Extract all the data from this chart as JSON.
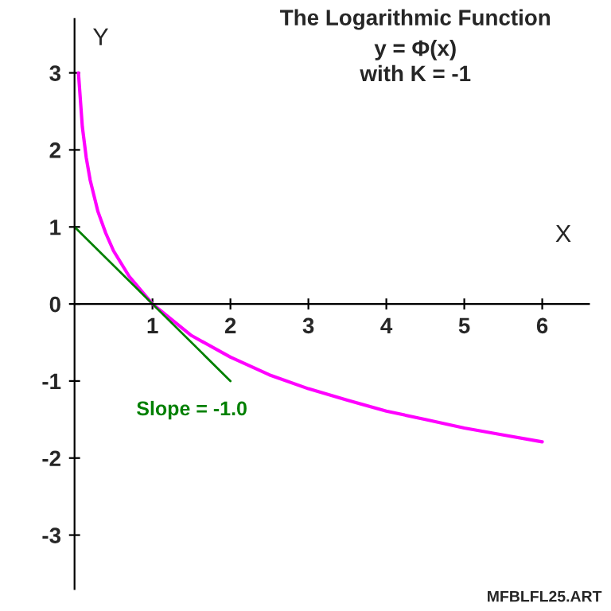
{
  "chart_data": {
    "type": "line",
    "title": "The Logarithmic Function",
    "subtitle": "y = Φ(x)\nwith K = -1",
    "xlabel": "X",
    "ylabel": "Y",
    "xlim": [
      0,
      6.6
    ],
    "ylim": [
      -3.7,
      3.7
    ],
    "xticks": [
      1,
      2,
      3,
      4,
      5,
      6
    ],
    "yticks": [
      {
        "value": -3,
        "label": "-3"
      },
      {
        "value": -2,
        "label": "-2"
      },
      {
        "value": -1,
        "label": "-1"
      },
      {
        "value": 0,
        "label": "0"
      },
      1,
      2,
      3
    ],
    "series": [
      {
        "color": "#ff00ff",
        "x": [
          0.05,
          0.1,
          0.15,
          0.2,
          0.3,
          0.4,
          0.5,
          0.7,
          1,
          1.5,
          2,
          2.5,
          3,
          3.5,
          4,
          4.5,
          5,
          5.5,
          6
        ],
        "values": [
          3.0,
          2.3,
          1.9,
          1.61,
          1.2,
          0.92,
          0.69,
          0.36,
          0,
          -0.41,
          -0.69,
          -0.92,
          -1.1,
          -1.25,
          -1.39,
          -1.5,
          -1.61,
          -1.7,
          -1.79
        ]
      },
      {
        "color": "#008000",
        "x": [
          0,
          2
        ],
        "values": [
          1,
          -1
        ]
      }
    ],
    "annotations": [
      "Slope = -1.0",
      "MFBLFL25.ART"
    ],
    "grid": false,
    "legend": false
  }
}
